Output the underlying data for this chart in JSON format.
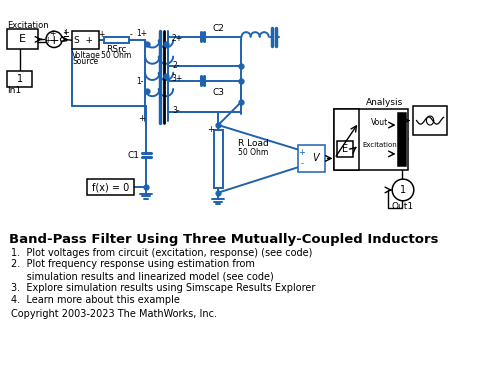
{
  "title": "Band-Pass Filter Using Three Mutually-Coupled Inductors",
  "bullet1": "1.  Plot voltages from circuit (excitation, response) (see code)",
  "bullet2a": "2.  Plot frequency response using estimation from",
  "bullet2b": "     simulation results and linearized model (see code)",
  "bullet3": "3.  Explore simulation results using Simscape Results Explorer",
  "bullet4": "4.  Learn more about this example",
  "copyright": "Copyright 2003-2023 The MathWorks, Inc.",
  "bg_color": "#ffffff",
  "circuit_color": "#1e62b0",
  "block_color": "#000000",
  "fig_width": 5.02,
  "fig_height": 3.79,
  "dpi": 100
}
